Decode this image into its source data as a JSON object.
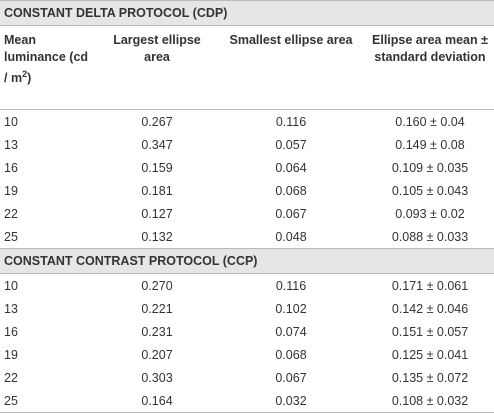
{
  "sections": [
    {
      "title": "CONSTANT DELTA PROTOCOL (CDP)",
      "rows": [
        [
          "10",
          "0.267",
          "0.116",
          "0.160 ± 0.04"
        ],
        [
          "13",
          "0.347",
          "0.057",
          "0.149 ± 0.08"
        ],
        [
          "16",
          "0.159",
          "0.064",
          "0.109 ± 0.035"
        ],
        [
          "19",
          "0.181",
          "0.068",
          "0.105 ± 0.043"
        ],
        [
          "22",
          "0.127",
          "0.067",
          "0.093 ± 0.02"
        ],
        [
          "25",
          "0.132",
          "0.048",
          "0.088 ± 0.033"
        ]
      ]
    },
    {
      "title": "CONSTANT CONTRAST PROTOCOL (CCP)",
      "rows": [
        [
          "10",
          "0.270",
          "0.116",
          "0.171 ± 0.061"
        ],
        [
          "13",
          "0.221",
          "0.102",
          "0.142 ± 0.046"
        ],
        [
          "16",
          "0.231",
          "0.074",
          "0.151 ± 0.057"
        ],
        [
          "19",
          "0.207",
          "0.068",
          "0.125 ± 0.041"
        ],
        [
          "22",
          "0.303",
          "0.067",
          "0.135 ± 0.072"
        ],
        [
          "25",
          "0.164",
          "0.032",
          "0.108 ± 0.032"
        ]
      ]
    }
  ],
  "header": {
    "luminance": {
      "text": "Mean luminance (cd / m",
      "sup": "2",
      "tail": ")"
    },
    "columns": [
      "Largest ellipse area",
      "Smallest ellipse area",
      "Ellipse area mean ± standard deviation"
    ]
  }
}
